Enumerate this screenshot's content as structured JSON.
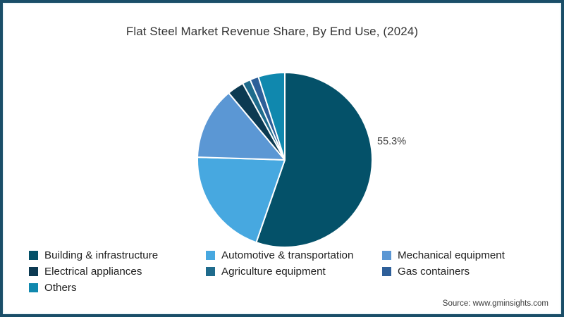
{
  "page": {
    "title": "Flat Steel Market Revenue Share, By End Use, (2024)",
    "source": "Source: www.gminsights.com",
    "border_color": "#1a4e68",
    "background_color": "#ffffff"
  },
  "chart_data": {
    "type": "pie",
    "title": "Flat Steel Market Revenue Share, By End Use, (2024)",
    "legend_position": "bottom",
    "start_angle_deg": 0,
    "direction": "clockwise",
    "segments": [
      {
        "label": "Building & infrastructure",
        "value": 55.3,
        "color": "#045169"
      },
      {
        "label": "Automotive & transportation",
        "value": 20.2,
        "color": "#47a8e0"
      },
      {
        "label": "Mechanical equipment",
        "value": 13.4,
        "color": "#5b97d4"
      },
      {
        "label": "Electrical appliances",
        "value": 3.1,
        "color": "#0c3a52"
      },
      {
        "label": "Agriculture equipment",
        "value": 1.5,
        "color": "#1f6b8c"
      },
      {
        "label": "Gas containers",
        "value": 1.6,
        "color": "#2e5f99"
      },
      {
        "label": "Others",
        "value": 4.9,
        "color": "#1088ae"
      }
    ],
    "data_labels": [
      {
        "segment": "Building & infrastructure",
        "text": "55.3%"
      }
    ]
  }
}
